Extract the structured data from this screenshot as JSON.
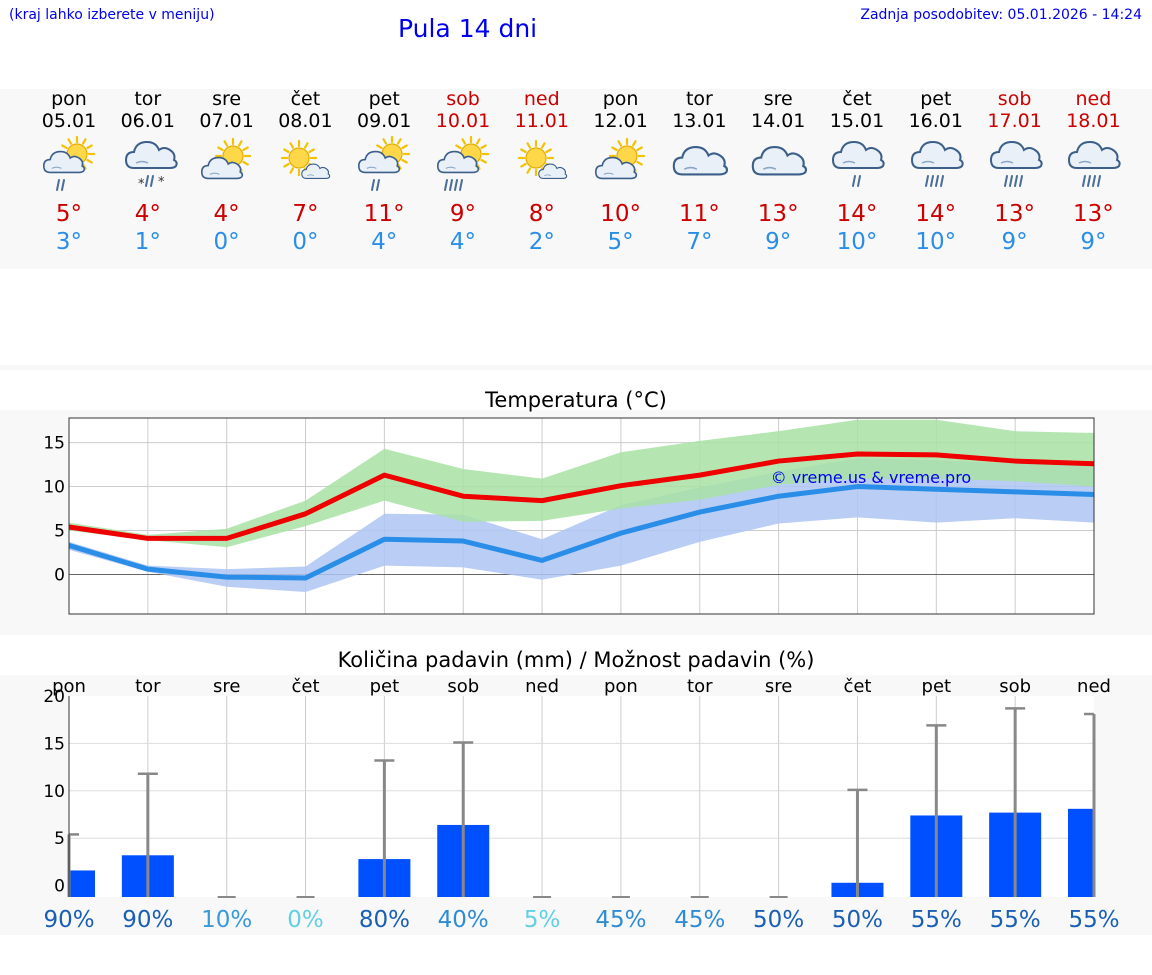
{
  "header": {
    "left_hint": "(kraj lahko izberete v meniju)",
    "title": "Pula 14 dni",
    "updated": "Zadnja posodobitev: 05.01.2026 - 14:24"
  },
  "days": [
    {
      "name": "pon",
      "date": "05.01",
      "tmax": "5°",
      "tmin": "3°",
      "weekend": false,
      "icon": "sun-cloud-rain-icon"
    },
    {
      "name": "tor",
      "date": "06.01",
      "tmax": "4°",
      "tmin": "1°",
      "weekend": false,
      "icon": "cloud-sleet-icon"
    },
    {
      "name": "sre",
      "date": "07.01",
      "tmax": "4°",
      "tmin": "0°",
      "weekend": false,
      "icon": "sun-cloud-icon"
    },
    {
      "name": "čet",
      "date": "08.01",
      "tmax": "7°",
      "tmin": "0°",
      "weekend": false,
      "icon": "sun-small-cloud-icon"
    },
    {
      "name": "pet",
      "date": "09.01",
      "tmax": "11°",
      "tmin": "4°",
      "weekend": false,
      "icon": "sun-cloud-rain-icon"
    },
    {
      "name": "sob",
      "date": "10.01",
      "tmax": "9°",
      "tmin": "4°",
      "weekend": true,
      "icon": "sun-cloud-heavy-rain-icon"
    },
    {
      "name": "ned",
      "date": "11.01",
      "tmax": "8°",
      "tmin": "2°",
      "weekend": true,
      "icon": "sun-small-cloud-icon"
    },
    {
      "name": "pon",
      "date": "12.01",
      "tmax": "10°",
      "tmin": "5°",
      "weekend": false,
      "icon": "sun-cloud-icon"
    },
    {
      "name": "tor",
      "date": "13.01",
      "tmax": "11°",
      "tmin": "7°",
      "weekend": false,
      "icon": "cloud-icon"
    },
    {
      "name": "sre",
      "date": "14.01",
      "tmax": "13°",
      "tmin": "9°",
      "weekend": false,
      "icon": "cloud-icon"
    },
    {
      "name": "čet",
      "date": "15.01",
      "tmax": "14°",
      "tmin": "10°",
      "weekend": false,
      "icon": "cloud-rain-icon"
    },
    {
      "name": "pet",
      "date": "16.01",
      "tmax": "14°",
      "tmin": "10°",
      "weekend": false,
      "icon": "cloud-heavy-rain-icon"
    },
    {
      "name": "sob",
      "date": "17.01",
      "tmax": "13°",
      "tmin": "9°",
      "weekend": true,
      "icon": "cloud-heavy-rain-icon"
    },
    {
      "name": "ned",
      "date": "18.01",
      "tmax": "13°",
      "tmin": "9°",
      "weekend": true,
      "icon": "cloud-heavy-rain-icon"
    }
  ],
  "colors": {
    "link": "#0000ee",
    "weekend": "#cc0000",
    "tmin": "#2a8ee8",
    "max_line": "#ee0000",
    "min_line": "#2a8ee8",
    "max_band": "#a8e2a4",
    "min_band": "#aec4f2",
    "precip_bar": "#0050ff",
    "precip_whisker": "#888888"
  },
  "chart_data": [
    {
      "type": "line",
      "title": "Temperatura (°C)",
      "x": [
        0,
        1,
        2,
        3,
        4,
        5,
        6,
        7,
        8,
        9,
        10,
        11,
        12,
        13
      ],
      "ylim": [
        -4.5,
        17.8
      ],
      "yticks": [
        0,
        5,
        10,
        15
      ],
      "watermark": "© vreme.us & vreme.pro",
      "series": [
        {
          "name": "max",
          "values": [
            5.4,
            4.1,
            4.1,
            6.9,
            11.3,
            8.9,
            8.4,
            10.1,
            11.3,
            12.9,
            13.7,
            13.6,
            12.9,
            12.6
          ]
        },
        {
          "name": "max_low",
          "values": [
            5.0,
            3.9,
            3.1,
            5.5,
            8.4,
            6.0,
            6.1,
            7.5,
            8.5,
            10.2,
            10.9,
            10.9,
            10.6,
            10.0
          ]
        },
        {
          "name": "max_high",
          "values": [
            5.9,
            4.5,
            5.2,
            8.4,
            14.3,
            12.0,
            10.9,
            13.9,
            15.2,
            16.3,
            17.6,
            17.6,
            16.3,
            16.1
          ]
        },
        {
          "name": "min",
          "values": [
            3.3,
            0.6,
            -0.3,
            -0.4,
            4.0,
            3.8,
            1.6,
            4.7,
            7.1,
            8.9,
            10.0,
            9.7,
            9.4,
            9.1
          ]
        },
        {
          "name": "min_low",
          "values": [
            2.8,
            0.3,
            -1.4,
            -2.0,
            1.0,
            0.8,
            -0.6,
            1.0,
            3.7,
            5.8,
            6.5,
            5.9,
            6.4,
            5.9
          ]
        },
        {
          "name": "min_high",
          "values": [
            3.7,
            1.0,
            0.6,
            0.9,
            6.9,
            6.8,
            4.0,
            7.9,
            9.9,
            11.7,
            13.2,
            13.0,
            12.6,
            12.4
          ]
        }
      ]
    },
    {
      "type": "bar",
      "title": "Količina padavin (mm) / Možnost padavin (%)",
      "categories": [
        "pon",
        "tor",
        "sre",
        "čet",
        "pet",
        "sob",
        "ned",
        "pon",
        "tor",
        "sre",
        "čet",
        "pet",
        "sob",
        "ned"
      ],
      "ylim": [
        -1.2,
        20
      ],
      "yticks": [
        0,
        5,
        10,
        15,
        20
      ],
      "series": [
        {
          "name": "amount_mm",
          "values": [
            1.6,
            3.2,
            0,
            0,
            2.8,
            6.4,
            0,
            0,
            0,
            0,
            0.3,
            7.4,
            7.7,
            8.1
          ]
        },
        {
          "name": "max_mm",
          "values": [
            5.4,
            11.8,
            0,
            0,
            13.2,
            15.1,
            0,
            0,
            0,
            0,
            10.1,
            16.9,
            18.7,
            18.1
          ]
        }
      ],
      "probability": [
        "90%",
        "90%",
        "10%",
        "0%",
        "80%",
        "40%",
        "5%",
        "45%",
        "45%",
        "50%",
        "50%",
        "55%",
        "55%",
        "55%"
      ],
      "probability_colors": [
        "#1a5fb4",
        "#1a5fb4",
        "#3a9ad9",
        "#62d0e4",
        "#1a5fb4",
        "#2f8cd3",
        "#62d0e4",
        "#2f8cd3",
        "#2f8cd3",
        "#1a5fb4",
        "#1a5fb4",
        "#1a5fb4",
        "#1a5fb4",
        "#1a5fb4"
      ]
    }
  ]
}
